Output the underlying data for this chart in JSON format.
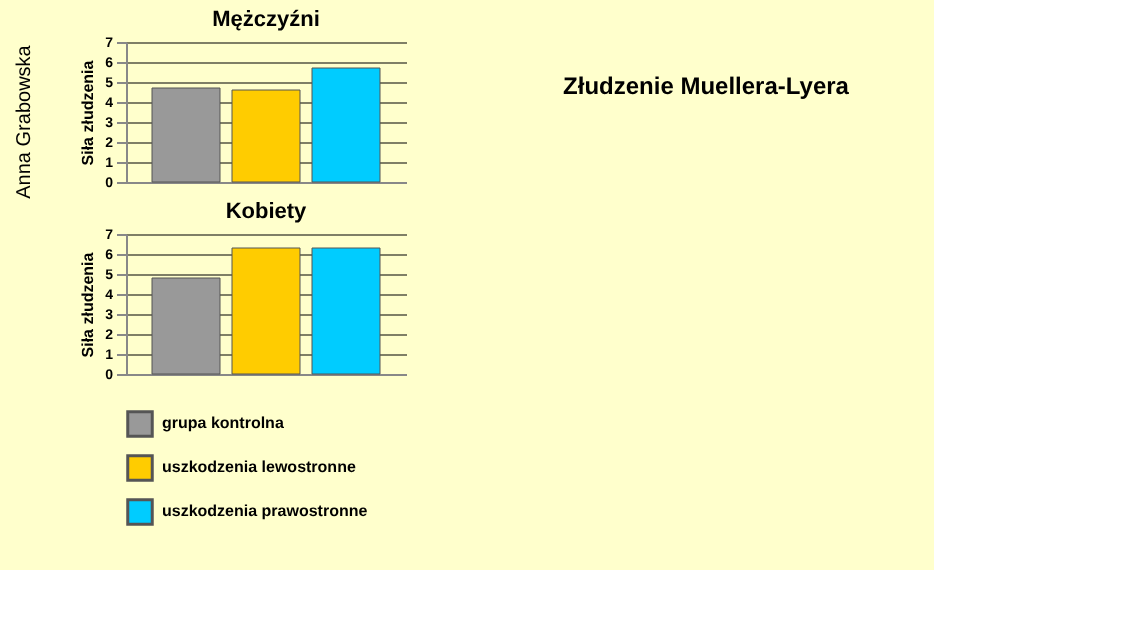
{
  "chart_data": [
    {
      "type": "bar",
      "title": "Mężczyźni",
      "ylabel": "Siła złudzenia",
      "categories": [
        null
      ],
      "series": [
        {
          "color": "#999999",
          "values": [
            4.7
          ]
        },
        {
          "color": "#ffcc00",
          "values": [
            4.6
          ]
        },
        {
          "color": "#00ccff",
          "values": [
            5.7
          ]
        }
      ],
      "ylim": [
        0,
        7
      ],
      "yticks": [
        0,
        1,
        2,
        3,
        4,
        5,
        6,
        7
      ],
      "grid": "y",
      "tick_labels": "y",
      "annotations": [
        "Anna Grabowska",
        "Złudzenie Muellera-Lyera"
      ]
    },
    {
      "type": "bar",
      "title": "Kobiety",
      "ylabel": "Siła złudzenia",
      "categories": [
        null
      ],
      "series": [
        {
          "name": "grupa kontrolna",
          "color": "#999999",
          "values": [
            4.8
          ]
        },
        {
          "name": "uszkodzenia lewostronne",
          "color": "#ffcc00",
          "values": [
            6.3
          ]
        },
        {
          "name": "uszkodzenia prawostronne",
          "color": "#00ccff",
          "values": [
            6.3
          ]
        }
      ],
      "ylim": [
        0,
        7
      ],
      "yticks": [
        0,
        1,
        2,
        3,
        4,
        5,
        6,
        7
      ],
      "grid": "y",
      "legend": "bottom",
      "tick_labels": "y"
    }
  ]
}
